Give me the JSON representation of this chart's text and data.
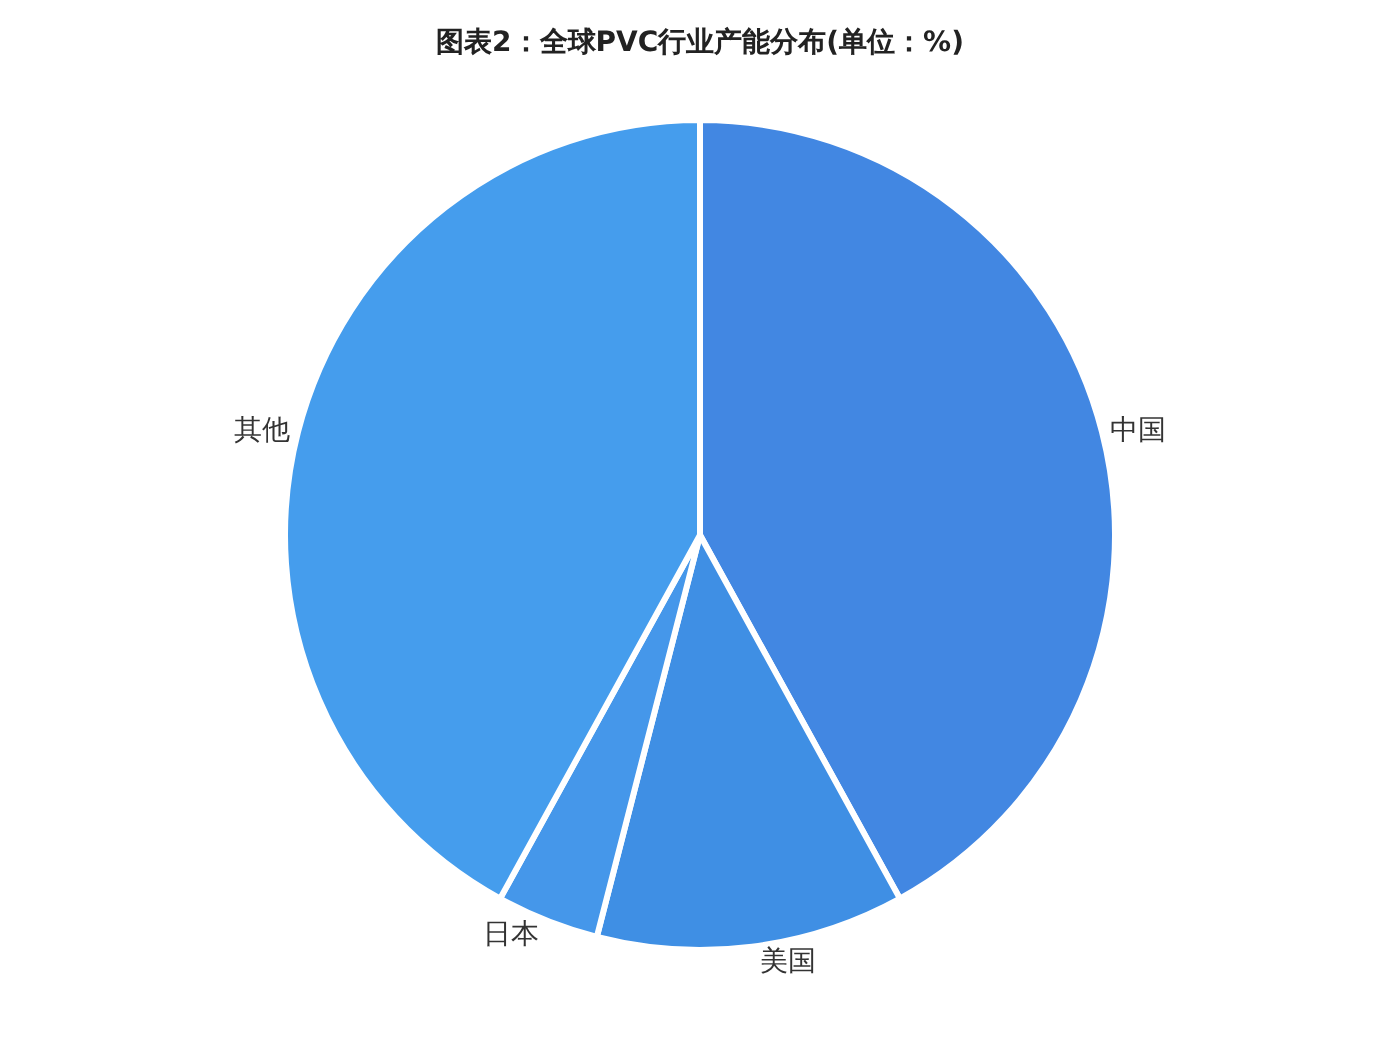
{
  "chart_data": {
    "type": "pie",
    "title": "图表2：全球PVC行业产能分布(单位：%)",
    "categories": [
      "中国",
      "美国",
      "日本",
      "其他"
    ],
    "values": [
      42,
      12,
      4,
      42
    ],
    "colors": [
      "#4287e2",
      "#3f8fe4",
      "#4597ea",
      "#459ded"
    ],
    "legend": false
  }
}
